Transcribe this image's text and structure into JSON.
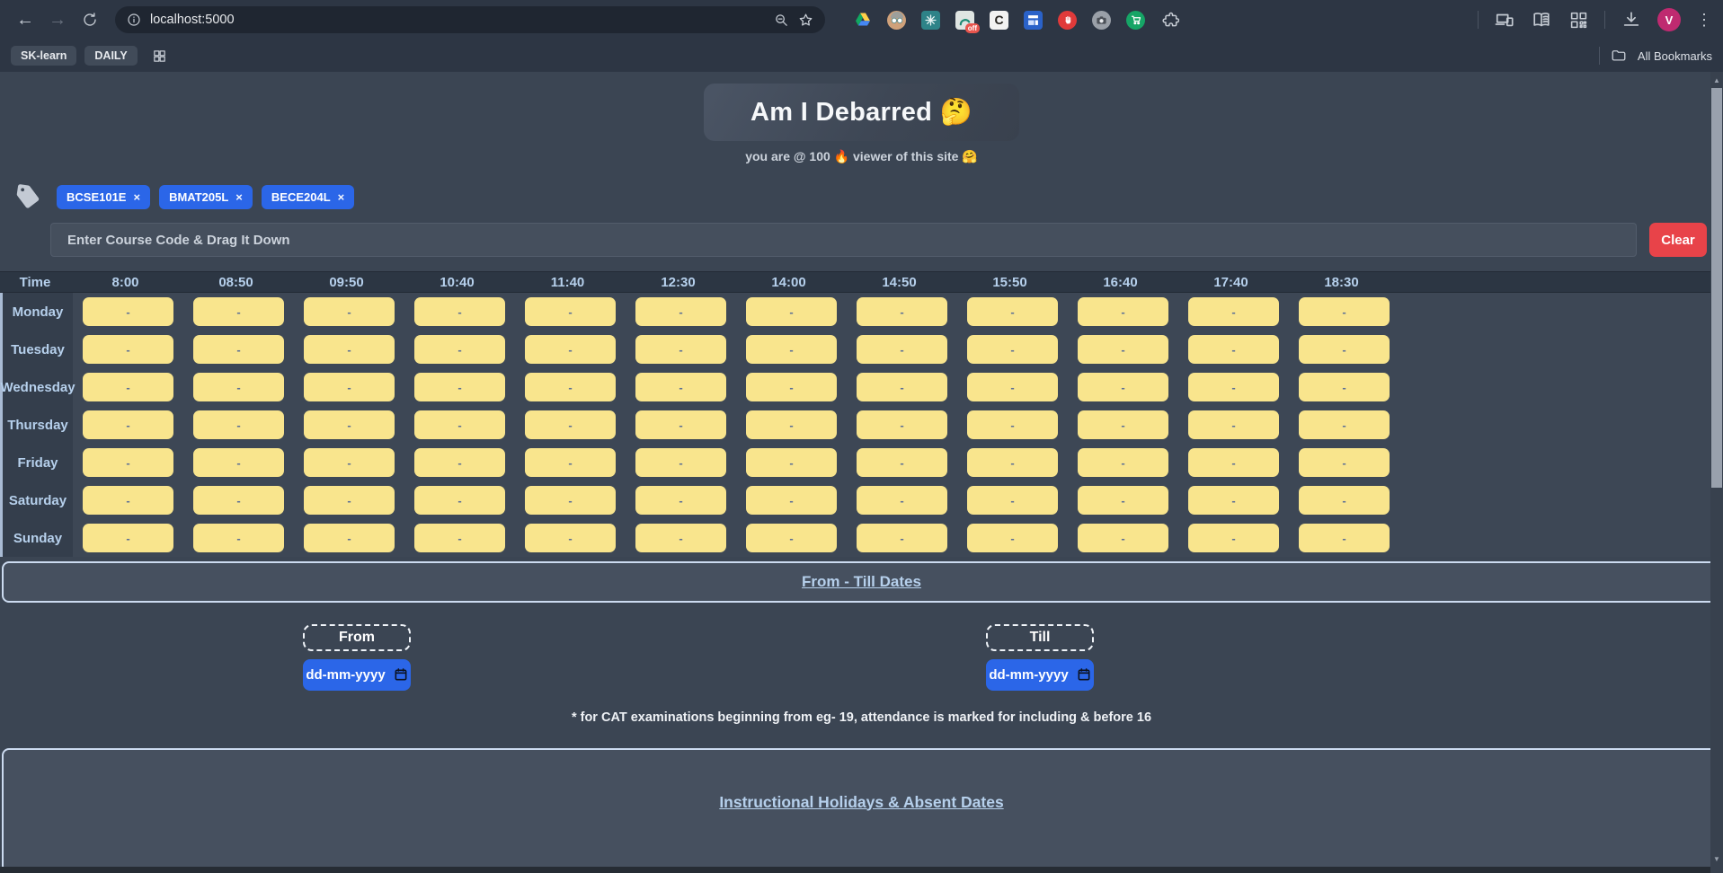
{
  "browser": {
    "url": "localhost:5000",
    "bookmarks": [
      "SK-learn",
      "DAILY"
    ],
    "all_bookmarks_label": "All Bookmarks",
    "profile_letter": "V",
    "icons": {
      "back": "←",
      "forward": "→",
      "menu_dots": "⋮",
      "off_badge": "off",
      "color_picker_letter": "C"
    }
  },
  "header": {
    "title": "Am I Debarred 🤔",
    "subtitle": "you are @ 100 🔥 viewer of this site 🤗"
  },
  "courses": {
    "chips": [
      {
        "label": "BCSE101E",
        "remove": "×"
      },
      {
        "label": "BMAT205L",
        "remove": "×"
      },
      {
        "label": "BECE204L",
        "remove": "×"
      }
    ],
    "input_placeholder": "Enter Course Code & Drag It Down",
    "clear_label": "Clear"
  },
  "timetable": {
    "time_header": "Time",
    "times": [
      "8:00",
      "08:50",
      "09:50",
      "10:40",
      "11:40",
      "12:30",
      "14:00",
      "14:50",
      "15:50",
      "16:40",
      "17:40",
      "18:30"
    ],
    "days": [
      "Monday",
      "Tuesday",
      "Wednesday",
      "Thursday",
      "Friday",
      "Saturday",
      "Sunday"
    ],
    "cell_value": "-"
  },
  "dates_section": {
    "heading": "From - Till Dates",
    "from_label": "From",
    "till_label": "Till",
    "date_placeholder": "dd-mm-yyyy",
    "note": "* for CAT examinations beginning from eg- 19, attendance is marked for including & before 16"
  },
  "holidays_section": {
    "heading": "Instructional Holidays & Absent Dates"
  },
  "colors": {
    "accent_blue": "#2b66e8",
    "clear_red": "#e84349",
    "cell_yellow": "#f9e58d",
    "heading_blue": "#b6d0ec",
    "page_bg": "#3b4553",
    "chrome_bg": "#2d3644"
  }
}
